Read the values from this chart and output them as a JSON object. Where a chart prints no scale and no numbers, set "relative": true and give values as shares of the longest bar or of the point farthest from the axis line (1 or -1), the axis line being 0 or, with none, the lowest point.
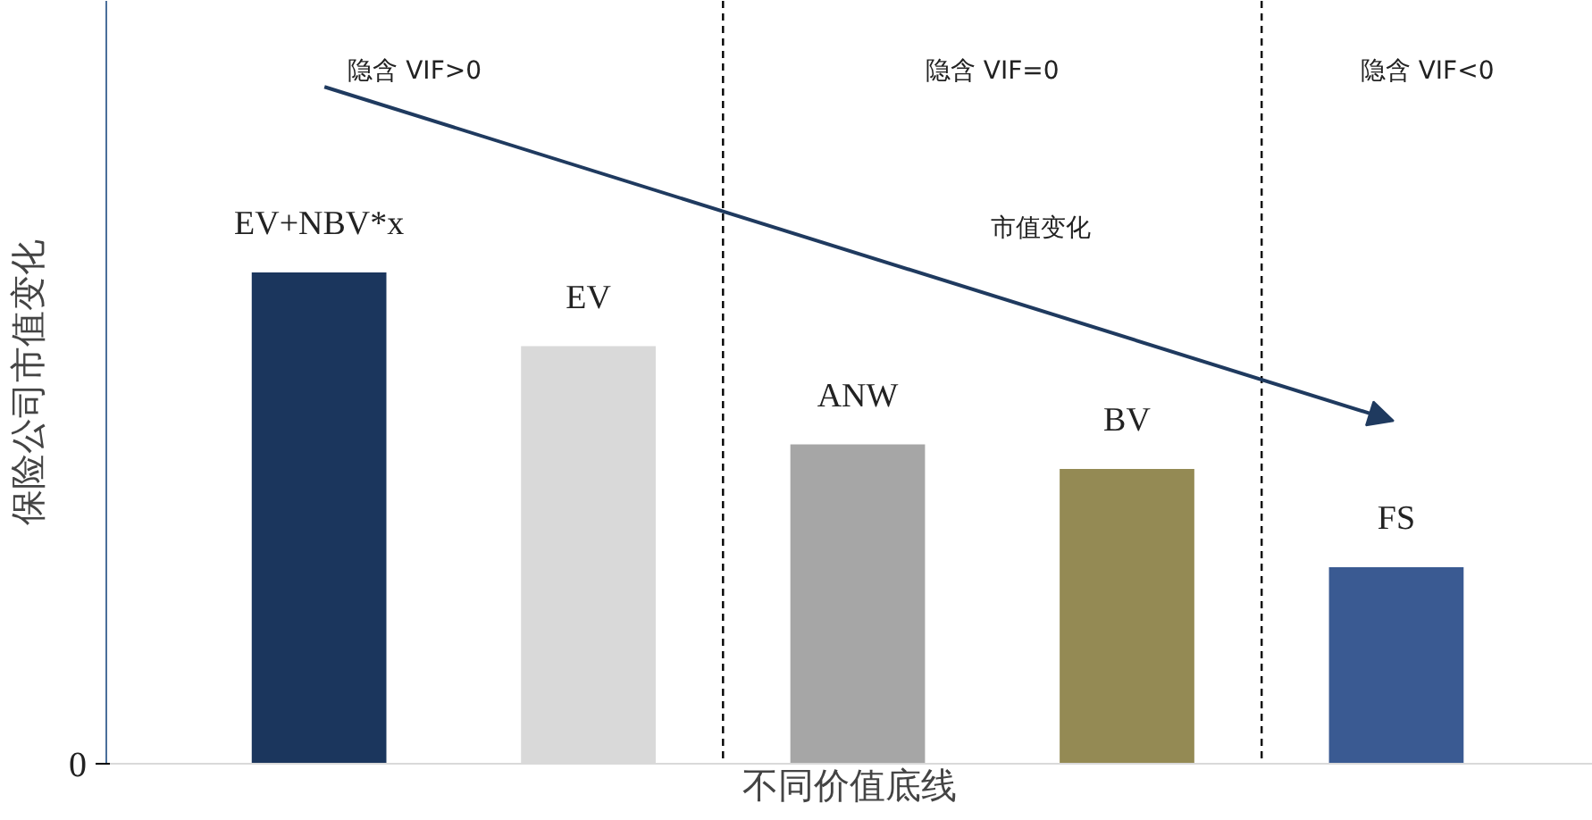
{
  "chart_data": {
    "type": "bar",
    "relative": true,
    "xlabel": "不同价值底线",
    "ylabel": "保险公司市值变化",
    "categories": [
      "EV+NBV*x",
      "EV",
      "ANW",
      "BV",
      "FS"
    ],
    "values": [
      1,
      0.85,
      0.65,
      0.6,
      0.4
    ],
    "colors": [
      "#1b365d",
      "#d9d9d9",
      "#a6a6a6",
      "#948a54",
      "#3a5a92"
    ],
    "annotations": [
      "市值变化",
      "0",
      "隐含 VIF>0",
      "隐含 VIF=0",
      "隐含 VIF<0"
    ]
  }
}
